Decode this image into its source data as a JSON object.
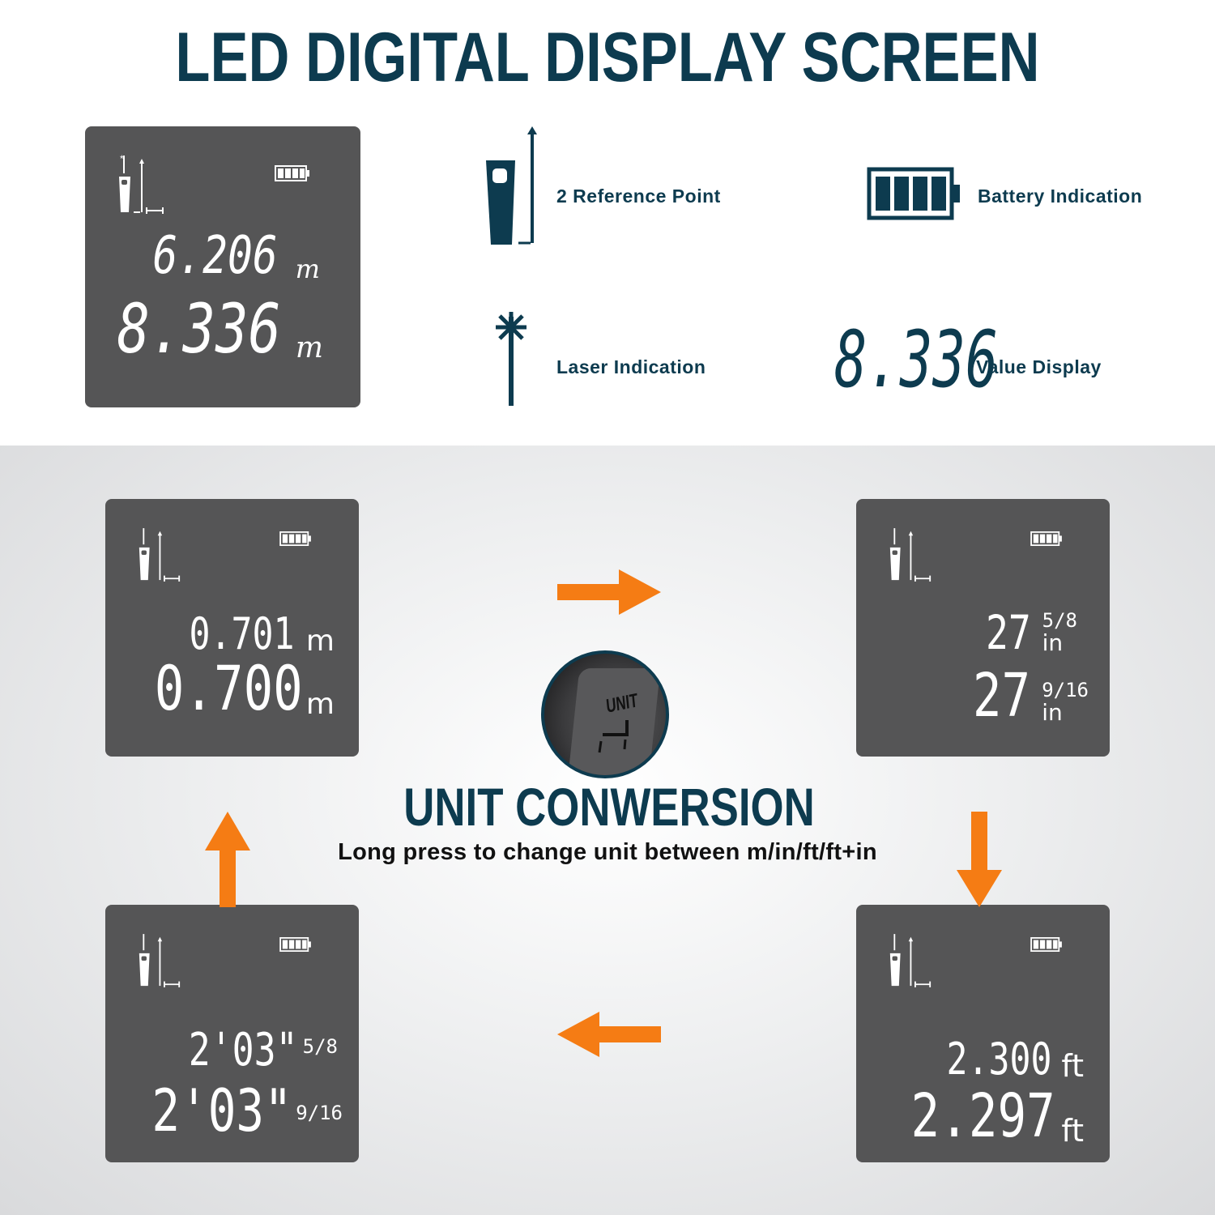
{
  "header": {
    "title": "LED DIGITAL DISPLAY SCREEN"
  },
  "main_display": {
    "line1_value": "6.206",
    "line1_unit": "m",
    "line2_value": "8.336",
    "line2_unit": "m"
  },
  "legend": {
    "items": [
      {
        "icon": "device-reference-icon",
        "label": "2 Reference Point"
      },
      {
        "icon": "battery-icon",
        "label": "Battery Indication"
      },
      {
        "icon": "laser-icon",
        "label": "Laser Indication"
      },
      {
        "icon": "value-digits",
        "value": "8.336",
        "label": "Value Display"
      }
    ]
  },
  "conversion": {
    "title": "UNIT CONWERSION",
    "subtitle": "Long press to change unit between m/in/ft/ft+in",
    "button_label": "UNIT",
    "accent_color": "#f57c14",
    "title_color": "#0d3b4f",
    "displays": {
      "meters": {
        "line1_value": "0.701",
        "line1_unit": "m",
        "line2_value": "0.700",
        "line2_unit": "m"
      },
      "inches": {
        "line1_value": "27",
        "line1_frac": "5/8",
        "line1_unit": "in",
        "line2_value": "27",
        "line2_frac": "9/16",
        "line2_unit": "in"
      },
      "feet": {
        "line1_value": "2.300",
        "line1_unit": "ft",
        "line2_value": "2.297",
        "line2_unit": "ft"
      },
      "feet_inches": {
        "line1_value": "2'03\"",
        "line1_frac": "5/8",
        "line2_value": "2'03\"",
        "line2_frac": "9/16"
      }
    }
  }
}
